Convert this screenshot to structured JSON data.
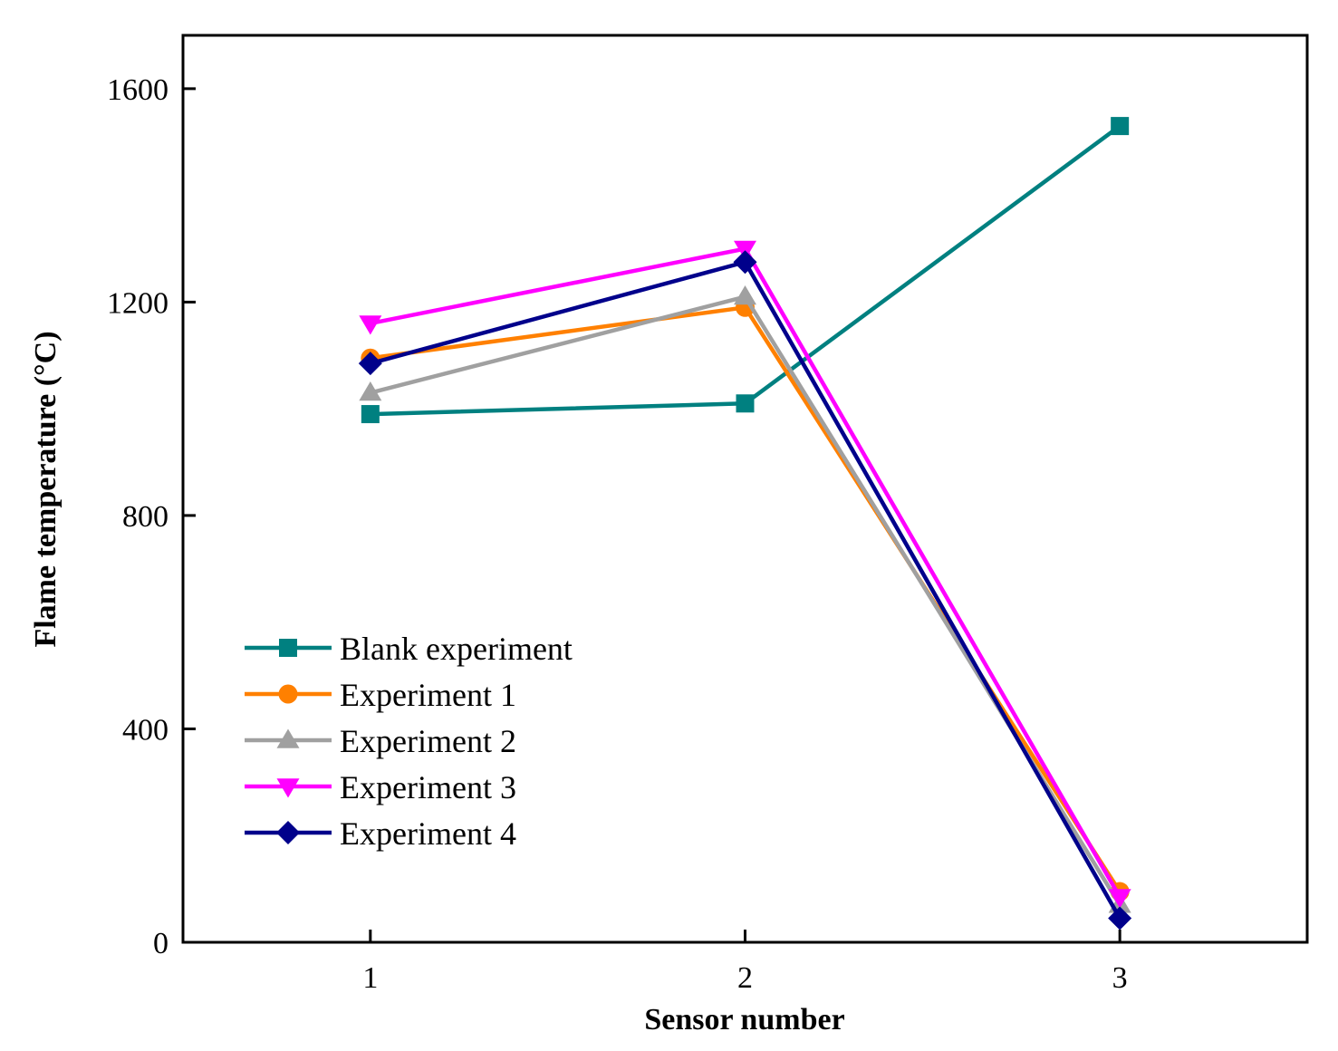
{
  "chart_data": {
    "type": "line",
    "title": "",
    "xlabel": "Sensor number",
    "ylabel": "Flame temperature (°C)",
    "x": [
      1,
      2,
      3
    ],
    "xticks": [
      "1",
      "2",
      "3"
    ],
    "yticks": [
      "0",
      "400",
      "800",
      "1200",
      "1600"
    ],
    "xlim": [
      0.5,
      3.5
    ],
    "ylim": [
      0,
      1700
    ],
    "legend_position": "lower-left",
    "series": [
      {
        "name": "Blank experiment",
        "values": [
          990,
          1010,
          1530
        ],
        "color": "#008080",
        "marker": "square"
      },
      {
        "name": "Experiment 1",
        "values": [
          1095,
          1190,
          95
        ],
        "color": "#ff8000",
        "marker": "circle"
      },
      {
        "name": "Experiment 2",
        "values": [
          1030,
          1210,
          70
        ],
        "color": "#a0a0a0",
        "marker": "triangle-up"
      },
      {
        "name": "Experiment 3",
        "values": [
          1160,
          1300,
          85
        ],
        "color": "#ff00ff",
        "marker": "triangle-down"
      },
      {
        "name": "Experiment 4",
        "values": [
          1085,
          1275,
          45
        ],
        "color": "#00008b",
        "marker": "diamond"
      }
    ]
  }
}
